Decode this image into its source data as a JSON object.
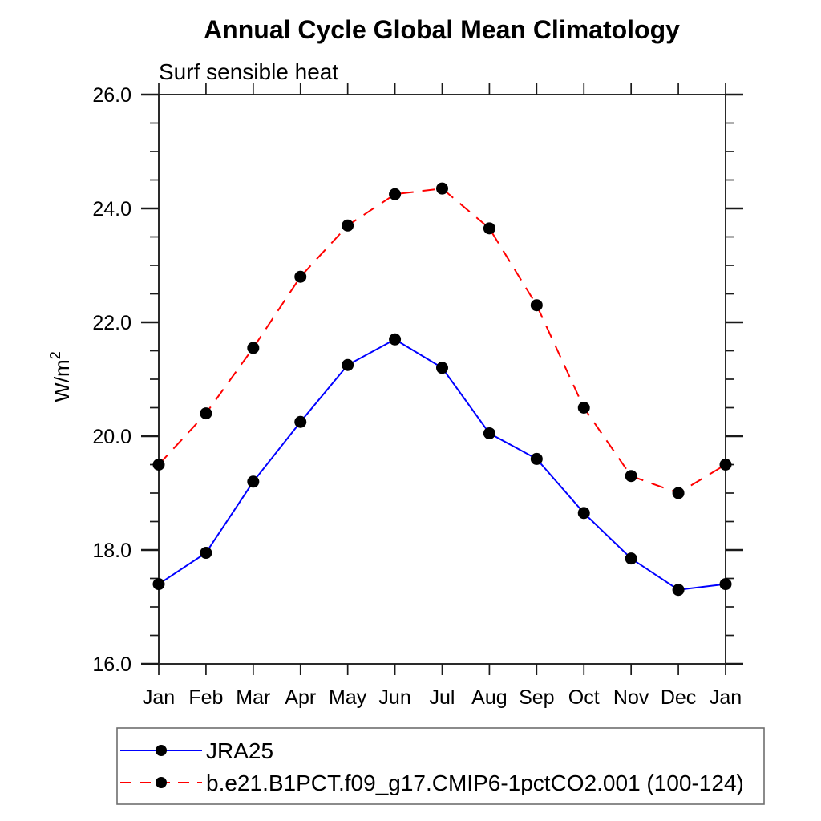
{
  "window": {
    "background": "#ffffff"
  },
  "chart_data": {
    "type": "line",
    "title": "Annual Cycle Global Mean Climatology",
    "subtitle": "Surf sensible heat",
    "ylabel_base": "W/m",
    "ylabel_exponent": "2",
    "xlabel": "",
    "categories": [
      "Jan",
      "Feb",
      "Mar",
      "Apr",
      "May",
      "Jun",
      "Jul",
      "Aug",
      "Sep",
      "Oct",
      "Nov",
      "Dec",
      "Jan"
    ],
    "ylim": [
      16.0,
      26.0
    ],
    "ytick_major_step": 2.0,
    "ytick_minor_step": 0.5,
    "ytick_labels": [
      "16.0",
      "18.0",
      "20.0",
      "22.0",
      "24.0",
      "26.0"
    ],
    "grid": false,
    "legend_position": "bottom-left-boxed",
    "series": [
      {
        "name": "JRA25",
        "color": "#0000ff",
        "line_style": "solid",
        "marker": "filled-circle",
        "marker_color": "#000000",
        "values": [
          17.4,
          17.95,
          19.2,
          20.25,
          21.25,
          21.7,
          21.2,
          20.05,
          19.6,
          18.65,
          17.85,
          17.3,
          17.4
        ]
      },
      {
        "name": "b.e21.B1PCT.f09_g17.CMIP6-1pctCO2.001 (100-124)",
        "color": "#ff0000",
        "line_style": "dashed",
        "marker": "filled-circle",
        "marker_color": "#000000",
        "values": [
          19.5,
          20.4,
          21.55,
          22.8,
          23.7,
          24.25,
          24.35,
          23.65,
          22.3,
          20.5,
          19.3,
          19.0,
          19.5
        ]
      }
    ]
  }
}
